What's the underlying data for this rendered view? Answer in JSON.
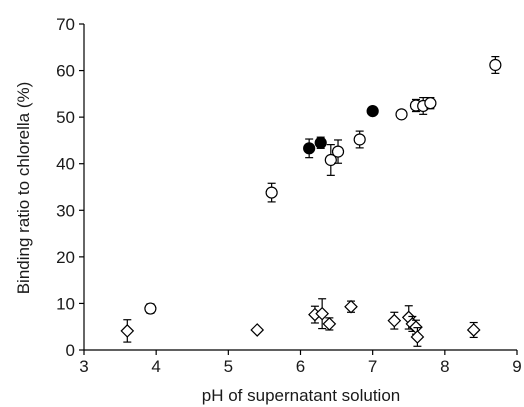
{
  "chart_data": {
    "type": "scatter",
    "xlabel": "pH of supernatant solution",
    "ylabel": "Binding ratio to chlorella (%)",
    "xlim": [
      3,
      9
    ],
    "ylim": [
      0,
      70
    ],
    "x_ticks": [
      3,
      4,
      5,
      6,
      7,
      8,
      9
    ],
    "y_ticks": [
      0,
      10,
      20,
      30,
      40,
      50,
      60,
      70
    ],
    "grid": false,
    "legend": "none",
    "series": [
      {
        "marker": "circle-filled",
        "color": "#000000",
        "points": [
          {
            "x": 6.12,
            "y": 43.3,
            "err": 2.0
          },
          {
            "x": 6.28,
            "y": 44.5,
            "err": 1.2
          },
          {
            "x": 7.0,
            "y": 51.3,
            "err": 0
          }
        ]
      },
      {
        "marker": "circle-open",
        "color": "#000000",
        "points": [
          {
            "x": 3.92,
            "y": 8.9,
            "err": 1.0
          },
          {
            "x": 5.6,
            "y": 33.8,
            "err": 2.0
          },
          {
            "x": 6.42,
            "y": 40.8,
            "err": 3.3
          },
          {
            "x": 6.52,
            "y": 42.6,
            "err": 2.5
          },
          {
            "x": 6.82,
            "y": 45.2,
            "err": 1.8
          },
          {
            "x": 7.4,
            "y": 50.6,
            "err": 0
          },
          {
            "x": 7.6,
            "y": 52.5,
            "err": 1.3
          },
          {
            "x": 7.7,
            "y": 52.4,
            "err": 1.8
          },
          {
            "x": 7.8,
            "y": 53.0,
            "err": 1.2
          },
          {
            "x": 8.7,
            "y": 61.2,
            "err": 1.8
          }
        ]
      },
      {
        "marker": "diamond-open",
        "color": "#000000",
        "points": [
          {
            "x": 3.6,
            "y": 4.1,
            "err": 2.4
          },
          {
            "x": 5.4,
            "y": 4.3,
            "err": 0
          },
          {
            "x": 6.2,
            "y": 7.6,
            "err": 1.8
          },
          {
            "x": 6.3,
            "y": 7.8,
            "err": 3.2
          },
          {
            "x": 6.4,
            "y": 5.6,
            "err": 1.3
          },
          {
            "x": 6.7,
            "y": 9.3,
            "err": 1.2
          },
          {
            "x": 7.3,
            "y": 6.3,
            "err": 1.8
          },
          {
            "x": 7.5,
            "y": 7.0,
            "err": 2.5
          },
          {
            "x": 7.55,
            "y": 5.6,
            "err": 1.6
          },
          {
            "x": 7.6,
            "y": 4.9,
            "err": 1.5
          },
          {
            "x": 7.62,
            "y": 2.8,
            "err": 2.0
          },
          {
            "x": 8.4,
            "y": 4.3,
            "err": 1.6
          }
        ]
      }
    ]
  }
}
